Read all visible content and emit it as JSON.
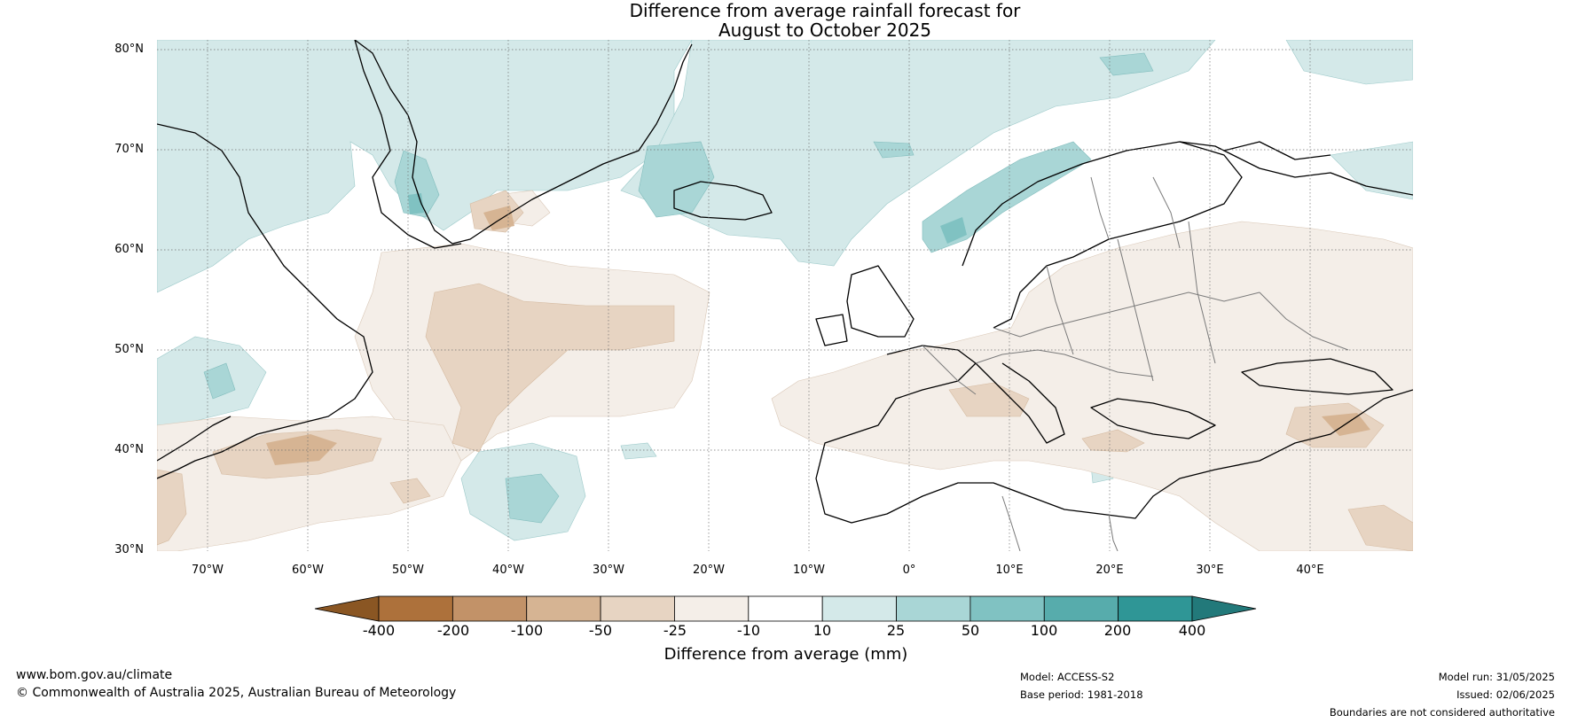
{
  "title_line1": "Difference from average rainfall forecast for",
  "title_line2": "August to October 2025",
  "lat_labels": [
    "80°N",
    "70°N",
    "60°N",
    "50°N",
    "40°N",
    "30°N"
  ],
  "lon_labels": [
    "70°W",
    "60°W",
    "50°W",
    "40°W",
    "30°W",
    "20°W",
    "10°W",
    "0°",
    "10°E",
    "20°E",
    "30°E",
    "40°E"
  ],
  "colorbar": {
    "ticks": [
      "-400",
      "-200",
      "-100",
      "-50",
      "-25",
      "-10",
      "10",
      "25",
      "50",
      "100",
      "200",
      "400"
    ],
    "colors": [
      "#8a5623",
      "#ad713b",
      "#c29268",
      "#d6b493",
      "#e7d4c2",
      "#f4eee8",
      "#ffffff",
      "#d4e9e9",
      "#a9d6d6",
      "#80c2c2",
      "#57acac",
      "#2f9696",
      "#22797a"
    ],
    "title": "Difference from average (mm)"
  },
  "footer": {
    "site": "www.bom.gov.au/climate",
    "copyright": "© Commonwealth of Australia 2025, Australian Bureau of Meteorology",
    "model": "Model: ACCESS-S2",
    "base_period": "Base period: 1981-2018",
    "model_run": "Model run: 31/05/2025",
    "issued": "Issued: 02/06/2025",
    "disclaimer": "Boundaries are not considered authoritative"
  }
}
